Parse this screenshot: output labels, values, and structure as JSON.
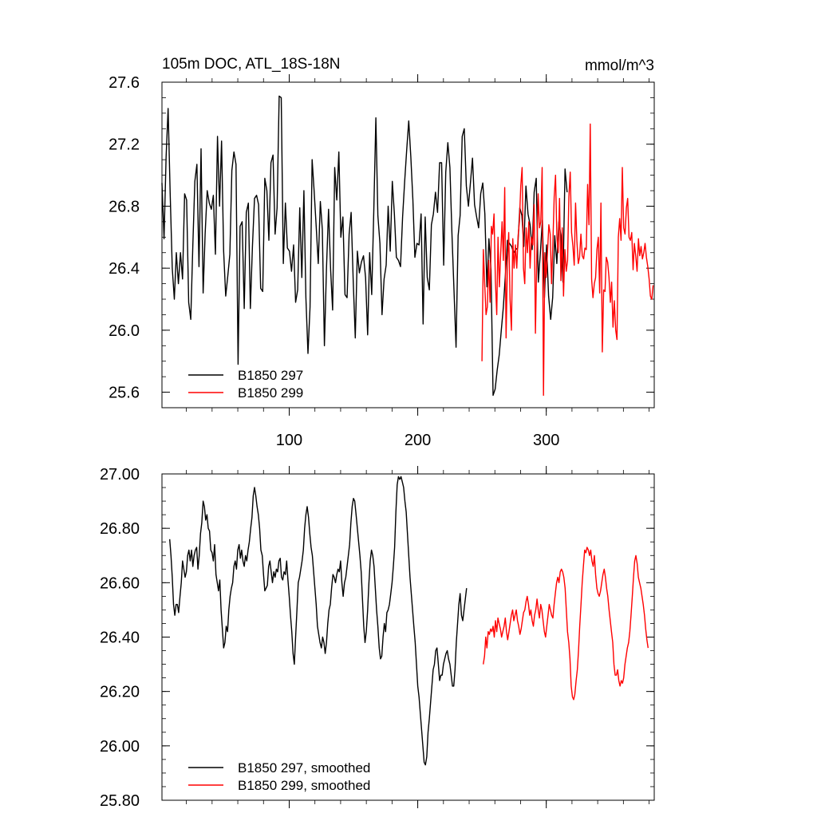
{
  "chart_data": [
    {
      "type": "line",
      "title": "105m DOC, ATL_18S-18N",
      "units": "mmol/m^3",
      "xlim": [
        1,
        384
      ],
      "ylim": [
        25.5,
        27.6
      ],
      "xticks": [
        100,
        200,
        300
      ],
      "xtick_labels": [
        "100",
        "200",
        "300"
      ],
      "yticks": [
        25.6,
        26.0,
        26.4,
        26.8,
        27.2,
        27.6
      ],
      "ytick_labels": [
        "25.6",
        "26.0",
        "26.4",
        "26.8",
        "27.2",
        "27.6"
      ],
      "legend_position": "bottom-left",
      "series": [
        {
          "name": "B1850 297",
          "color": "#000000",
          "x_start": 1,
          "values": [
            26.95,
            26.59,
            27.12,
            27.43,
            26.88,
            26.4,
            26.2,
            26.5,
            26.3,
            26.5,
            26.33,
            26.88,
            26.84,
            26.18,
            26.07,
            26.55,
            26.96,
            27.07,
            26.41,
            27.17,
            26.24,
            26.62,
            26.9,
            26.82,
            26.78,
            26.87,
            26.49,
            27.25,
            26.8,
            27.22,
            26.51,
            26.22,
            26.35,
            26.49,
            27.03,
            27.15,
            27.07,
            25.78,
            26.67,
            26.7,
            26.14,
            26.76,
            26.82,
            26.14,
            26.54,
            26.85,
            26.87,
            26.81,
            26.27,
            26.25,
            26.98,
            26.9,
            26.58,
            27.08,
            27.13,
            26.62,
            26.79,
            27.51,
            27.5,
            26.43,
            26.82,
            26.53,
            26.51,
            26.38,
            26.55,
            26.18,
            26.26,
            26.79,
            26.34,
            26.9,
            26.21,
            25.85,
            26.15,
            27.1,
            26.9,
            26.67,
            26.43,
            26.83,
            26.65,
            25.9,
            26.4,
            26.78,
            26.39,
            26.13,
            27.05,
            26.84,
            27.15,
            26.6,
            26.73,
            26.23,
            26.21,
            26.62,
            26.76,
            26.32,
            25.95,
            26.51,
            26.37,
            26.44,
            26.48,
            26.34,
            25.97,
            26.5,
            26.23,
            26.77,
            27.37,
            26.74,
            26.56,
            26.1,
            26.33,
            26.42,
            26.8,
            26.51,
            26.96,
            26.75,
            26.47,
            26.45,
            26.41,
            26.73,
            26.96,
            27.16,
            27.35,
            27.12,
            26.84,
            26.47,
            26.56,
            26.55,
            26.75,
            26.04,
            26.73,
            26.34,
            26.26,
            26.68,
            26.75,
            26.89,
            26.76,
            27.08,
            27.08,
            26.42,
            27.02,
            27.21,
            27.05,
            26.63,
            26.26,
            25.89,
            26.61,
            26.74,
            27.25,
            27.3,
            26.93,
            26.8,
            26.95,
            27.11,
            26.81,
            26.73,
            26.66,
            26.88,
            26.95,
            26.75,
            26.28,
            26.59,
            26.39,
            25.58,
            25.62,
            25.74,
            25.84,
            26.0,
            26.15,
            26.36,
            26.58,
            26.56,
            26.54,
            26.5,
            26.52,
            26.53,
            26.79,
            26.74,
            26.54,
            26.93,
            26.75,
            26.68,
            26.52,
            26.89,
            26.98,
            26.31,
            26.5,
            26.71,
            26.21,
            26.55,
            26.22,
            26.07,
            26.21,
            26.61,
            26.43,
            26.7,
            26.61,
            26.31,
            27.04,
            26.89
          ],
          "x_step": 1.6
        },
        {
          "name": "B1850 299",
          "color": "#ff0000",
          "x_start": 250,
          "values": [
            25.8,
            26.52,
            26.3,
            26.1,
            26.15,
            26.45,
            26.18,
            26.67,
            26.62,
            26.75,
            26.32,
            26.1,
            26.6,
            26.28,
            26.5,
            26.7,
            26.45,
            26.92,
            25.95,
            26.43,
            26.63,
            26.2,
            26.0,
            26.59,
            26.4,
            26.55,
            26.4,
            26.61,
            26.7,
            26.93,
            27.05,
            26.4,
            26.3,
            26.66,
            26.5,
            26.7,
            26.4,
            26.6,
            26.55,
            26.81,
            25.98,
            26.48,
            26.88,
            26.66,
            26.7,
            27.05,
            25.58,
            26.5,
            26.34,
            26.5,
            26.68,
            26.62,
            26.3,
            26.55,
            26.86,
            27.0,
            26.6,
            26.5,
            26.85,
            26.32,
            26.66,
            26.22,
            26.52,
            26.38,
            26.45,
            26.86,
            27.02,
            26.63,
            26.54,
            26.42,
            26.82,
            26.57,
            26.43,
            26.47,
            26.62,
            26.48,
            26.46,
            26.53,
            26.52,
            26.94,
            26.68,
            27.33,
            26.33,
            26.21,
            26.3,
            26.34,
            26.52,
            26.6,
            26.24,
            26.82,
            25.86,
            26.26,
            26.25,
            26.47,
            26.44,
            26.34,
            26.18,
            26.31,
            26.02,
            26.19,
            26.0,
            25.94,
            26.6,
            26.72,
            26.58,
            27.05,
            26.66,
            26.62,
            26.79,
            26.85,
            26.6,
            26.58,
            26.63,
            26.39,
            26.56,
            26.48,
            26.38,
            26.59,
            26.48,
            26.54,
            26.46,
            26.5,
            26.56,
            26.47,
            26.41,
            26.33,
            26.22,
            26.2,
            26.29
          ],
          "x_step": 1.04
        }
      ]
    },
    {
      "type": "line",
      "title": "",
      "xlim": [
        1,
        384
      ],
      "ylim": [
        25.8,
        27.0
      ],
      "xticks": [
        100,
        200,
        300
      ],
      "xtick_labels": [],
      "yticks": [
        25.8,
        26.0,
        26.2,
        26.4,
        26.6,
        26.8,
        27.0
      ],
      "ytick_labels": [
        "25.80",
        "26.00",
        "26.20",
        "26.40",
        "26.60",
        "26.80",
        "27.00"
      ],
      "legend_position": "bottom-left",
      "series": [
        {
          "name": "B1850 297, smoothed",
          "color": "#000000",
          "x_start": 7,
          "x_step": 1.0,
          "values": [
            26.76,
            26.7,
            26.62,
            26.52,
            26.48,
            26.52,
            26.52,
            26.49,
            26.55,
            26.6,
            26.68,
            26.65,
            26.62,
            26.64,
            26.7,
            26.72,
            26.68,
            26.72,
            26.66,
            26.7,
            26.72,
            26.73,
            26.65,
            26.7,
            26.78,
            26.82,
            26.9,
            26.88,
            26.83,
            26.85,
            26.8,
            26.79,
            26.72,
            26.71,
            26.68,
            26.74,
            26.63,
            26.6,
            26.57,
            26.61,
            26.5,
            26.43,
            26.36,
            26.38,
            26.44,
            26.42,
            26.5,
            26.55,
            26.58,
            26.6,
            26.66,
            26.68,
            26.65,
            26.72,
            26.74,
            26.69,
            26.72,
            26.68,
            26.66,
            26.7,
            26.68,
            26.72,
            26.75,
            26.8,
            26.84,
            26.92,
            26.95,
            26.92,
            26.88,
            26.85,
            26.8,
            26.72,
            26.7,
            26.63,
            26.57,
            26.58,
            26.59,
            26.66,
            26.68,
            26.64,
            26.6,
            26.64,
            26.62,
            26.65,
            26.64,
            26.68,
            26.69,
            26.62,
            26.61,
            26.64,
            26.63,
            26.68,
            26.61,
            26.55,
            26.48,
            26.42,
            26.34,
            26.3,
            26.4,
            26.5,
            26.6,
            26.62,
            26.65,
            26.68,
            26.72,
            26.8,
            26.85,
            26.88,
            26.84,
            26.78,
            26.73,
            26.7,
            26.64,
            26.58,
            26.52,
            26.44,
            26.41,
            26.38,
            26.36,
            26.4,
            26.38,
            26.34,
            26.38,
            26.45,
            26.5,
            26.52,
            26.58,
            26.63,
            26.62,
            26.6,
            26.63,
            26.65,
            26.64,
            26.68,
            26.6,
            26.55,
            26.6,
            26.62,
            26.66,
            26.7,
            26.74,
            26.82,
            26.88,
            26.91,
            26.9,
            26.85,
            26.8,
            26.75,
            26.7,
            26.64,
            26.54,
            26.44,
            26.38,
            26.42,
            26.5,
            26.6,
            26.68,
            26.72,
            26.7,
            26.66,
            26.58,
            26.5,
            26.44,
            26.36,
            26.32,
            26.33,
            26.4,
            26.45,
            26.42,
            26.49,
            26.5,
            26.52,
            26.56,
            26.6,
            26.66,
            26.73,
            26.86,
            26.96,
            26.99,
            26.98,
            26.99,
            26.97,
            26.95,
            26.9,
            26.86,
            26.78,
            26.7,
            26.62,
            26.56,
            26.5,
            26.44,
            26.38,
            26.3,
            26.22,
            26.18,
            26.12,
            26.06,
            26.0,
            25.94,
            25.93,
            25.96,
            26.05,
            26.1,
            26.16,
            26.22,
            26.28,
            26.3,
            26.35,
            26.36,
            26.3,
            26.24,
            26.26,
            26.26,
            26.3,
            26.32,
            26.34,
            26.35,
            26.32,
            26.3,
            26.26,
            26.22,
            26.22,
            26.28,
            26.38,
            26.45,
            26.52,
            26.56,
            26.48,
            26.46,
            26.5,
            26.54,
            26.58
          ]
        },
        {
          "name": "B1850 299, smoothed",
          "color": "#ff0000",
          "x_start": 251,
          "x_step": 0.95,
          "values": [
            26.3,
            26.33,
            26.4,
            26.36,
            26.42,
            26.41,
            26.43,
            26.42,
            26.44,
            26.4,
            26.46,
            26.42,
            26.47,
            26.45,
            26.43,
            26.4,
            26.42,
            26.44,
            26.47,
            26.42,
            26.39,
            26.42,
            26.45,
            26.48,
            26.5,
            26.46,
            26.48,
            26.5,
            26.46,
            26.44,
            26.41,
            26.43,
            26.46,
            26.49,
            26.5,
            26.53,
            26.55,
            26.52,
            26.48,
            26.5,
            26.46,
            26.44,
            26.48,
            26.5,
            26.54,
            26.5,
            26.47,
            26.52,
            26.5,
            26.46,
            26.42,
            26.4,
            26.44,
            26.48,
            26.52,
            26.5,
            26.48,
            26.47,
            26.52,
            26.56,
            26.6,
            26.62,
            26.6,
            26.64,
            26.65,
            26.64,
            26.62,
            26.58,
            26.5,
            26.42,
            26.38,
            26.32,
            26.22,
            26.18,
            26.17,
            26.19,
            26.24,
            26.28,
            26.35,
            26.44,
            26.52,
            26.6,
            26.66,
            26.72,
            26.71,
            26.73,
            26.72,
            26.7,
            26.72,
            26.68,
            26.66,
            26.7,
            26.63,
            26.58,
            26.56,
            26.55,
            26.57,
            26.6,
            26.63,
            26.65,
            26.62,
            26.58,
            26.55,
            26.5,
            26.46,
            26.42,
            26.38,
            26.3,
            26.26,
            26.26,
            26.28,
            26.24,
            26.22,
            26.24,
            26.23,
            26.25,
            26.3,
            26.33,
            26.36,
            26.38,
            26.42,
            26.48,
            26.55,
            26.62,
            26.68,
            26.7,
            26.67,
            26.62,
            26.6,
            26.58,
            26.55,
            26.52,
            26.48,
            26.43,
            26.39,
            26.36
          ]
        }
      ]
    }
  ]
}
